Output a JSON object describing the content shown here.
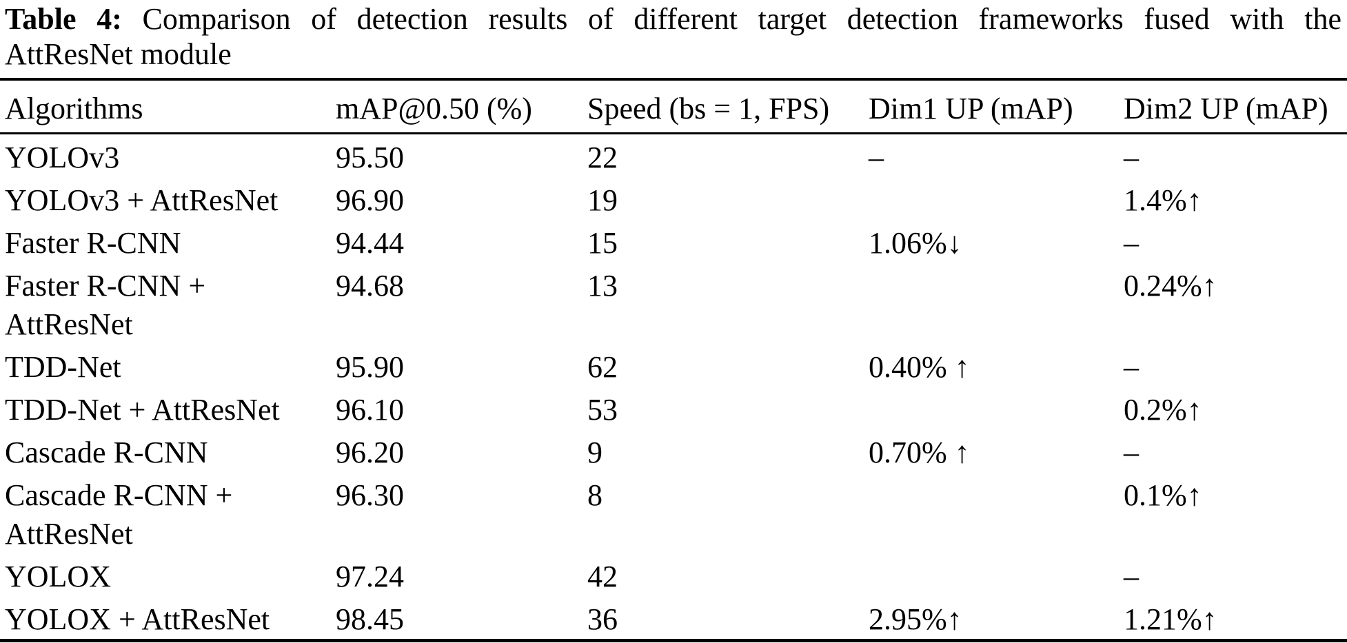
{
  "title": {
    "prefix": "Table 4:",
    "line1": "Comparison of detection results of different target detection frameworks fused with the",
    "line2": "AttResNet module"
  },
  "table": {
    "columns": [
      "Algorithms",
      "mAP@0.50 (%)",
      "Speed (bs = 1, FPS)",
      "Dim1 UP (mAP)",
      "Dim2 UP (mAP)"
    ],
    "rows": [
      {
        "algorithm": "YOLOv3",
        "map": "95.50",
        "speed": "22",
        "dim1": "–",
        "dim2": "–"
      },
      {
        "algorithm": "YOLOv3 + AttResNet",
        "map": "96.90",
        "speed": "19",
        "dim1": "",
        "dim2": "1.4%↑"
      },
      {
        "algorithm": "Faster R-CNN",
        "map": "94.44",
        "speed": "15",
        "dim1": "1.06%↓",
        "dim2": "–"
      },
      {
        "algorithm": "Faster R-CNN + AttResNet",
        "map": "94.68",
        "speed": "13",
        "dim1": "",
        "dim2": "0.24%↑"
      },
      {
        "algorithm": "TDD-Net",
        "map": "95.90",
        "speed": "62",
        "dim1": "0.40% ↑",
        "dim2": "–"
      },
      {
        "algorithm": "TDD-Net + AttResNet",
        "map": "96.10",
        "speed": "53",
        "dim1": "",
        "dim2": "0.2%↑"
      },
      {
        "algorithm": "Cascade R-CNN",
        "map": "96.20",
        "speed": "9",
        "dim1": "0.70% ↑",
        "dim2": "–"
      },
      {
        "algorithm": "Cascade R-CNN + AttResNet",
        "map": "96.30",
        "speed": "8",
        "dim1": "",
        "dim2": "0.1%↑"
      },
      {
        "algorithm": "YOLOX",
        "map": "97.24",
        "speed": "42",
        "dim1": "",
        "dim2": "–"
      },
      {
        "algorithm": "YOLOX + AttResNet",
        "map": "98.45",
        "speed": "36",
        "dim1": "2.95%↑",
        "dim2": "1.21%↑"
      }
    ]
  },
  "colors": {
    "text": "#000000",
    "background": "#ffffff",
    "rule": "#000000"
  }
}
